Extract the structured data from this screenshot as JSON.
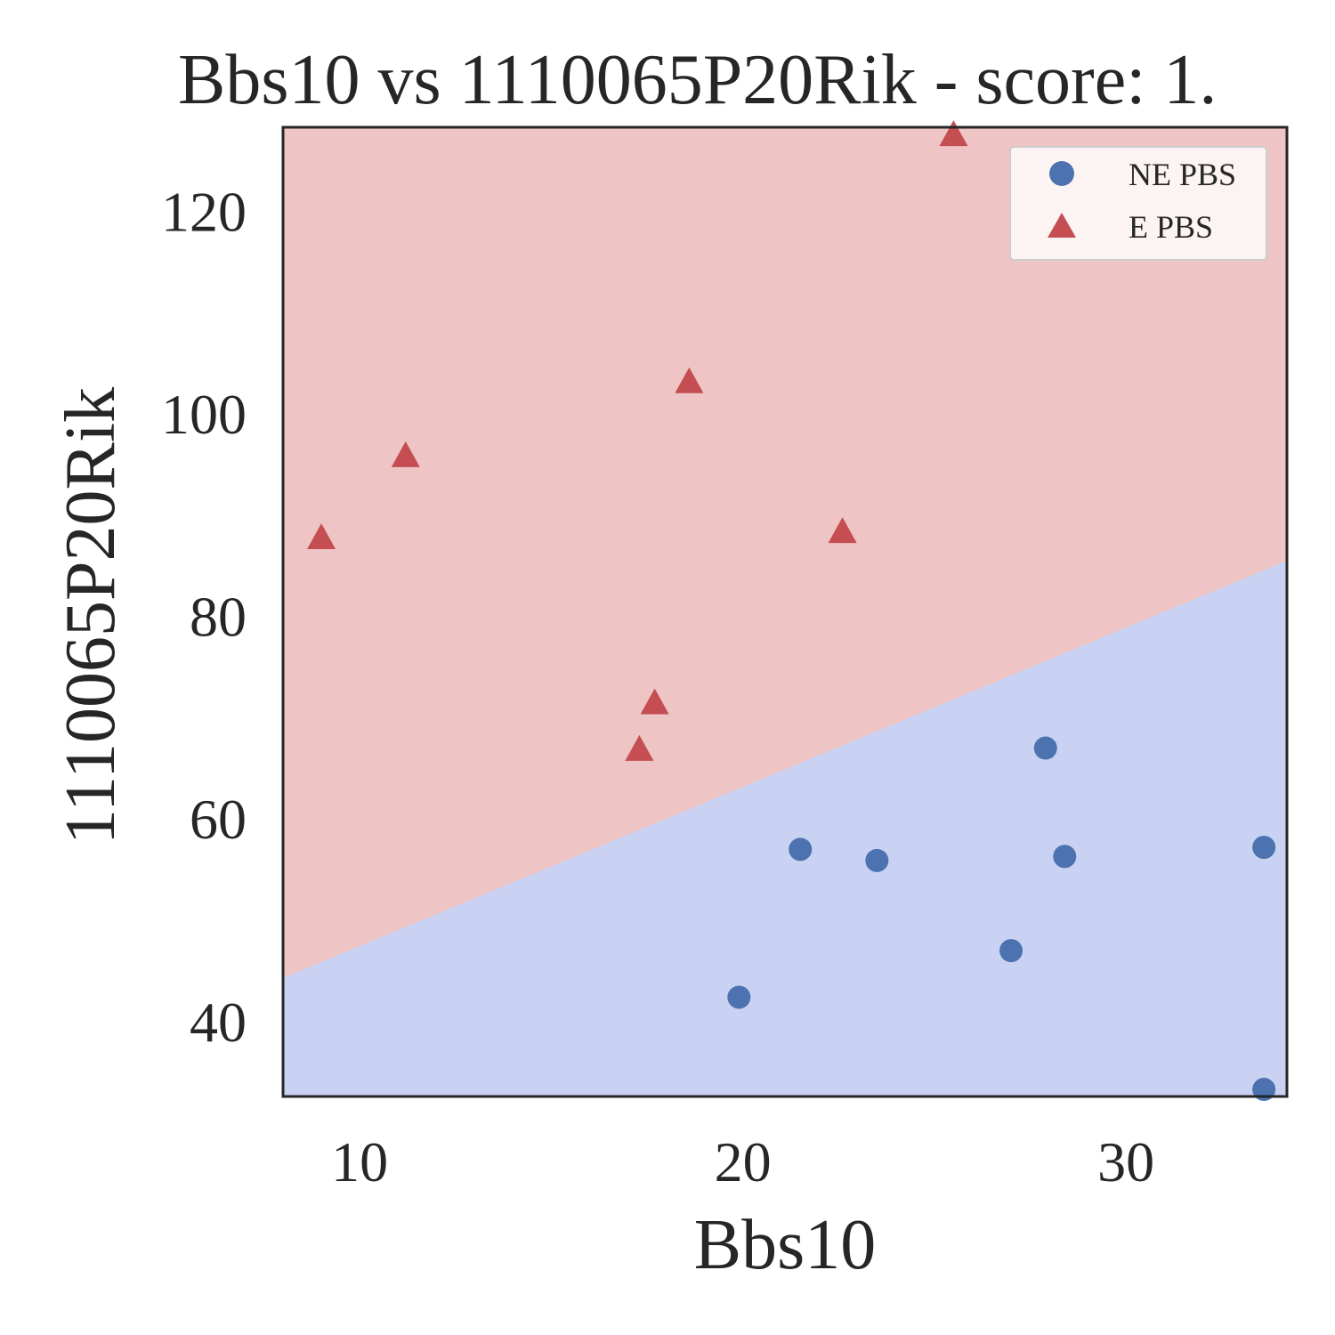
{
  "chart_data": {
    "type": "scatter",
    "title": "Bbs10 vs 1110065P20Rik - score: 1.",
    "xlabel": "Bbs10",
    "ylabel": "1110065P20Rik",
    "xlim": [
      8.0,
      34.2
    ],
    "ylim": [
      32.6,
      128.3
    ],
    "xticks": [
      10,
      20,
      30
    ],
    "yticks": [
      40,
      60,
      80,
      100,
      120
    ],
    "grid": false,
    "legend_position": "top-right",
    "decision_boundary": {
      "description": "linear boundary separating classes",
      "points": [
        [
          8.0,
          44.3
        ],
        [
          34.2,
          85.5
        ]
      ],
      "below_class": "NE PBS",
      "above_class": "E PBS"
    },
    "series": [
      {
        "name": "NE PBS",
        "marker": "circle",
        "color": "#4c72b0",
        "region_color": "#c9d2f2",
        "points": [
          [
            19.9,
            42.4
          ],
          [
            21.5,
            57.0
          ],
          [
            23.5,
            55.9
          ],
          [
            27.0,
            47.0
          ],
          [
            27.9,
            67.0
          ],
          [
            28.4,
            56.3
          ],
          [
            33.6,
            57.2
          ],
          [
            33.6,
            33.3
          ]
        ]
      },
      {
        "name": "E PBS",
        "marker": "triangle",
        "color": "#c44e52",
        "region_color": "#eec5c4",
        "points": [
          [
            9.0,
            87.7
          ],
          [
            11.2,
            95.8
          ],
          [
            17.3,
            66.8
          ],
          [
            17.7,
            71.4
          ],
          [
            18.6,
            103.1
          ],
          [
            22.6,
            88.3
          ],
          [
            25.5,
            127.5
          ]
        ]
      }
    ]
  }
}
